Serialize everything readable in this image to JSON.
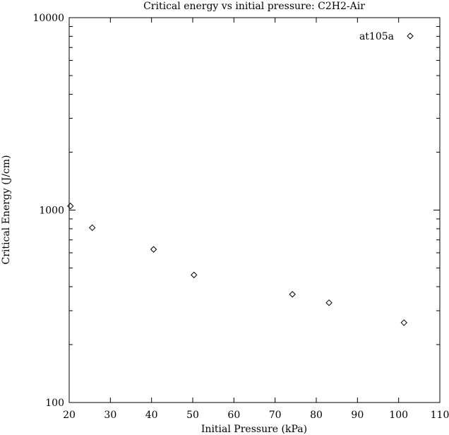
{
  "chart_data": {
    "type": "scatter",
    "title": "Critical energy vs initial pressure: C2H2-Air",
    "xlabel": "Initial Pressure (kPa)",
    "ylabel": "Critical Energy (J/cm)",
    "xlim": [
      20,
      110
    ],
    "ylim": [
      100,
      10000
    ],
    "yscale": "log",
    "grid": false,
    "legend_position": "top-right",
    "x_ticks": [
      "20",
      "30",
      "40",
      "50",
      "60",
      "70",
      "80",
      "90",
      "100",
      "110"
    ],
    "y_ticks": [
      "100",
      "1000",
      "10000"
    ],
    "series": [
      {
        "name": "at105a",
        "marker": "diamond",
        "color": "#000000",
        "x": [
          20.3,
          25.6,
          40.5,
          50.3,
          74.2,
          83.1,
          101.3
        ],
        "y": [
          1050,
          810,
          625,
          460,
          365,
          330,
          260
        ]
      }
    ]
  }
}
